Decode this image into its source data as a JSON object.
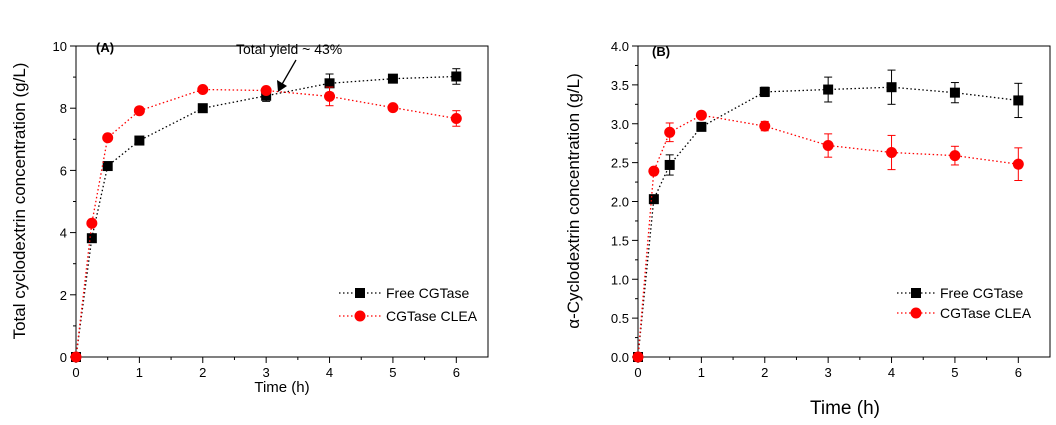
{
  "chart_data": [
    {
      "type": "scatter",
      "panel_label": "(A)",
      "xlabel": "Time (h)",
      "ylabel": "Total cyclodextrin concentration (g/L)",
      "xlim": [
        0,
        6.5
      ],
      "ylim": [
        0,
        10
      ],
      "xticks": [
        0,
        1,
        2,
        3,
        4,
        5,
        6
      ],
      "yticks": [
        0,
        2,
        4,
        6,
        8,
        10
      ],
      "ytick_labels": [
        "0",
        "2",
        "4",
        "6",
        "8",
        "10"
      ],
      "legend_position": "bottom-right",
      "annotation": {
        "text": "Total yield ~ 43%",
        "points_to": [
          3,
          8.55
        ]
      },
      "series": [
        {
          "name": "Free CGTase",
          "color": "#000000",
          "marker": "square",
          "line": "dotted",
          "x": [
            0,
            0.25,
            0.5,
            1,
            2,
            3,
            4,
            5,
            6
          ],
          "y": [
            0,
            3.82,
            6.14,
            6.96,
            8.0,
            8.4,
            8.8,
            8.95,
            9.02
          ],
          "err": [
            0,
            0,
            0.1,
            0,
            0,
            0.18,
            0.3,
            0,
            0.25
          ]
        },
        {
          "name": "CGTase CLEA",
          "color": "#ff0000",
          "marker": "circle",
          "line": "dotted",
          "x": [
            0,
            0.25,
            0.5,
            1,
            2,
            3,
            4,
            5,
            6
          ],
          "y": [
            0,
            4.3,
            7.05,
            7.92,
            8.6,
            8.57,
            8.38,
            8.02,
            7.67
          ],
          "err": [
            0,
            0,
            0,
            0,
            0,
            0,
            0.3,
            0,
            0.25
          ]
        }
      ]
    },
    {
      "type": "scatter",
      "panel_label": "(B)",
      "xlabel": "Time (h)",
      "ylabel": "α-Cyclodextrin concentration (g/L)",
      "xlim": [
        0,
        6.5
      ],
      "ylim": [
        0,
        4.0
      ],
      "xticks": [
        0,
        1,
        2,
        3,
        4,
        5,
        6
      ],
      "yticks": [
        0,
        0.5,
        1.0,
        1.5,
        2.0,
        2.5,
        3.0,
        3.5,
        4.0
      ],
      "ytick_labels": [
        "0.0",
        "0.5",
        "1.0",
        "1.5",
        "2.0",
        "2.5",
        "3.0",
        "3.5",
        "4.0"
      ],
      "legend_position": "bottom-right",
      "series": [
        {
          "name": "Free CGTase",
          "color": "#000000",
          "marker": "square",
          "line": "dotted",
          "x": [
            0,
            0.25,
            0.5,
            1,
            2,
            3,
            4,
            5,
            6
          ],
          "y": [
            0,
            2.03,
            2.47,
            2.96,
            3.41,
            3.44,
            3.47,
            3.4,
            3.3
          ],
          "err": [
            0,
            0,
            0.13,
            0,
            0.06,
            0.16,
            0.22,
            0.13,
            0.22
          ]
        },
        {
          "name": "CGTase CLEA",
          "color": "#ff0000",
          "marker": "circle",
          "line": "dotted",
          "x": [
            0,
            0.25,
            0.5,
            1,
            2,
            3,
            4,
            5,
            6
          ],
          "y": [
            0,
            2.39,
            2.89,
            3.11,
            2.97,
            2.72,
            2.63,
            2.59,
            2.48
          ],
          "err": [
            0,
            0,
            0.12,
            0,
            0.06,
            0.15,
            0.22,
            0.12,
            0.21
          ]
        }
      ]
    }
  ]
}
